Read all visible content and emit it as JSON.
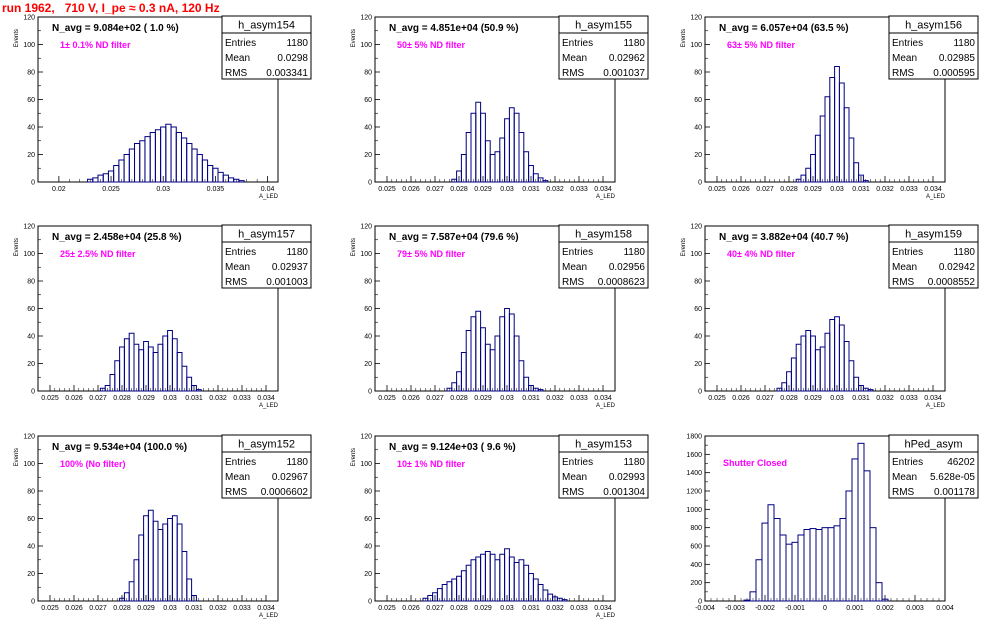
{
  "header": {
    "title": "run 1962,   710 V, I_pe ≈ 0.3 nA, 120 Hz"
  },
  "chart_data": [
    {
      "type": "histogram",
      "name": "h_asym154",
      "navg": "N_avg = 9.084e+02 ( 1.0 %)",
      "note": "1± 0.1% ND filter",
      "stats": {
        "entries": "1180",
        "mean": "0.0298",
        "rms": "0.003341"
      },
      "xlabel": "A_LED",
      "ylabel": "Events",
      "xlim": [
        0.018,
        0.041
      ],
      "ylim": [
        0,
        120
      ],
      "xticks": [
        0.02,
        0.025,
        0.03,
        0.035,
        0.04
      ],
      "xtick_labels": [
        "0.02",
        "0.025",
        "0.03",
        "0.035",
        "0.04"
      ],
      "yticks": [
        0,
        20,
        40,
        60,
        80,
        100,
        120
      ],
      "ytick_labels": [
        "0",
        "20",
        "40",
        "60",
        "80",
        "100",
        "120"
      ],
      "x": [
        0.023,
        0.0235,
        0.024,
        0.0245,
        0.025,
        0.0255,
        0.026,
        0.0265,
        0.027,
        0.0275,
        0.028,
        0.0285,
        0.029,
        0.0295,
        0.03,
        0.0305,
        0.031,
        0.0315,
        0.032,
        0.0325,
        0.033,
        0.0335,
        0.034,
        0.0345,
        0.035,
        0.0355,
        0.036,
        0.0365,
        0.037,
        0.0375
      ],
      "y": [
        2,
        3,
        5,
        6,
        8,
        12,
        16,
        20,
        24,
        28,
        30,
        33,
        36,
        38,
        40,
        42,
        40,
        36,
        32,
        28,
        24,
        20,
        16,
        12,
        10,
        7,
        5,
        3,
        2,
        1
      ]
    },
    {
      "type": "histogram",
      "name": "h_asym155",
      "navg": "N_avg = 4.851e+04 (50.9 %)",
      "note": "50± 5% ND filter",
      "stats": {
        "entries": "1180",
        "mean": "0.02962",
        "rms": "0.001037"
      },
      "xlabel": "A_LED",
      "ylabel": "Events",
      "xlim": [
        0.0245,
        0.0345
      ],
      "ylim": [
        0,
        120
      ],
      "xticks": [
        0.025,
        0.026,
        0.027,
        0.028,
        0.029,
        0.03,
        0.031,
        0.032,
        0.033,
        0.034
      ],
      "xtick_labels": [
        "0.025",
        "0.026",
        "0.027",
        "0.028",
        "0.029",
        "0.03",
        "0.031",
        "0.032",
        "0.033",
        "0.034"
      ],
      "yticks": [
        0,
        20,
        40,
        60,
        80,
        100,
        120
      ],
      "ytick_labels": [
        "0",
        "20",
        "40",
        "60",
        "80",
        "100",
        "120"
      ],
      "x": [
        0.0278,
        0.028,
        0.0282,
        0.0284,
        0.0286,
        0.0288,
        0.029,
        0.0292,
        0.0294,
        0.0296,
        0.0298,
        0.03,
        0.0302,
        0.0304,
        0.0306,
        0.0308,
        0.031,
        0.0312,
        0.0314,
        0.0316
      ],
      "y": [
        2,
        8,
        20,
        36,
        50,
        58,
        50,
        30,
        20,
        22,
        32,
        46,
        54,
        50,
        36,
        22,
        12,
        6,
        3,
        1
      ]
    },
    {
      "type": "histogram",
      "name": "h_asym156",
      "navg": "N_avg = 6.057e+04 (63.5 %)",
      "note": "63± 5% ND filter",
      "stats": {
        "entries": "1180",
        "mean": "0.02985",
        "rms": "0.000595"
      },
      "xlabel": "A_LED",
      "ylabel": "Events",
      "xlim": [
        0.0245,
        0.0345
      ],
      "ylim": [
        0,
        120
      ],
      "xticks": [
        0.025,
        0.026,
        0.027,
        0.028,
        0.029,
        0.03,
        0.031,
        0.032,
        0.033,
        0.034
      ],
      "xtick_labels": [
        "0.025",
        "0.026",
        "0.027",
        "0.028",
        "0.029",
        "0.03",
        "0.031",
        "0.032",
        "0.033",
        "0.034"
      ],
      "yticks": [
        0,
        20,
        40,
        60,
        80,
        100,
        120
      ],
      "ytick_labels": [
        "0",
        "20",
        "40",
        "60",
        "80",
        "100",
        "120"
      ],
      "x": [
        0.0284,
        0.0286,
        0.0288,
        0.029,
        0.0292,
        0.0294,
        0.0296,
        0.0298,
        0.03,
        0.0302,
        0.0304,
        0.0306,
        0.0308,
        0.031,
        0.0312
      ],
      "y": [
        2,
        5,
        10,
        20,
        34,
        48,
        62,
        76,
        84,
        72,
        54,
        32,
        14,
        5,
        1
      ]
    },
    {
      "type": "histogram",
      "name": "h_asym157",
      "navg": "N_avg = 2.458e+04 (25.8 %)",
      "note": "25± 2.5% ND filter",
      "stats": {
        "entries": "1180",
        "mean": "0.02937",
        "rms": "0.001003"
      },
      "xlabel": "A_LED",
      "ylabel": "Events",
      "xlim": [
        0.0245,
        0.0345
      ],
      "ylim": [
        0,
        120
      ],
      "xticks": [
        0.025,
        0.026,
        0.027,
        0.028,
        0.029,
        0.03,
        0.031,
        0.032,
        0.033,
        0.034
      ],
      "xtick_labels": [
        "0.025",
        "0.026",
        "0.027",
        "0.028",
        "0.029",
        "0.03",
        "0.031",
        "0.032",
        "0.033",
        "0.034"
      ],
      "yticks": [
        0,
        20,
        40,
        60,
        80,
        100,
        120
      ],
      "ytick_labels": [
        "0",
        "20",
        "40",
        "60",
        "80",
        "100",
        "120"
      ],
      "x": [
        0.0272,
        0.0274,
        0.0276,
        0.0278,
        0.028,
        0.0282,
        0.0284,
        0.0286,
        0.0288,
        0.029,
        0.0292,
        0.0294,
        0.0296,
        0.0298,
        0.03,
        0.0302,
        0.0304,
        0.0306,
        0.0308,
        0.031,
        0.0312
      ],
      "y": [
        2,
        4,
        12,
        22,
        32,
        38,
        42,
        34,
        30,
        36,
        32,
        28,
        34,
        40,
        44,
        38,
        28,
        18,
        10,
        4,
        1
      ]
    },
    {
      "type": "histogram",
      "name": "h_asym158",
      "navg": "N_avg = 7.587e+04 (79.6 %)",
      "note": "79± 5% ND filter",
      "stats": {
        "entries": "1180",
        "mean": "0.02956",
        "rms": "0.0008623"
      },
      "xlabel": "A_LED",
      "ylabel": "Events",
      "xlim": [
        0.0245,
        0.0345
      ],
      "ylim": [
        0,
        120
      ],
      "xticks": [
        0.025,
        0.026,
        0.027,
        0.028,
        0.029,
        0.03,
        0.031,
        0.032,
        0.033,
        0.034
      ],
      "xtick_labels": [
        "0.025",
        "0.026",
        "0.027",
        "0.028",
        "0.029",
        "0.03",
        "0.031",
        "0.032",
        "0.033",
        "0.034"
      ],
      "yticks": [
        0,
        20,
        40,
        60,
        80,
        100,
        120
      ],
      "ytick_labels": [
        "0",
        "20",
        "40",
        "60",
        "80",
        "100",
        "120"
      ],
      "x": [
        0.0276,
        0.0278,
        0.028,
        0.0282,
        0.0284,
        0.0286,
        0.0288,
        0.029,
        0.0292,
        0.0294,
        0.0296,
        0.0298,
        0.03,
        0.0302,
        0.0304,
        0.0306,
        0.0308,
        0.031,
        0.0312,
        0.0314
      ],
      "y": [
        2,
        6,
        14,
        28,
        44,
        54,
        58,
        46,
        34,
        30,
        40,
        54,
        60,
        56,
        40,
        22,
        10,
        4,
        2,
        1
      ]
    },
    {
      "type": "histogram",
      "name": "h_asym159",
      "navg": "N_avg = 3.882e+04 (40.7 %)",
      "note": "40± 4% ND filter",
      "stats": {
        "entries": "1180",
        "mean": "0.02942",
        "rms": "0.0008552"
      },
      "xlabel": "A_LED",
      "ylabel": "Events",
      "xlim": [
        0.0245,
        0.0345
      ],
      "ylim": [
        0,
        120
      ],
      "xticks": [
        0.025,
        0.026,
        0.027,
        0.028,
        0.029,
        0.03,
        0.031,
        0.032,
        0.033,
        0.034
      ],
      "xtick_labels": [
        "0.025",
        "0.026",
        "0.027",
        "0.028",
        "0.029",
        "0.03",
        "0.031",
        "0.032",
        "0.033",
        "0.034"
      ],
      "yticks": [
        0,
        20,
        40,
        60,
        80,
        100,
        120
      ],
      "ytick_labels": [
        "0",
        "20",
        "40",
        "60",
        "80",
        "100",
        "120"
      ],
      "x": [
        0.0276,
        0.0278,
        0.028,
        0.0282,
        0.0284,
        0.0286,
        0.0288,
        0.029,
        0.0292,
        0.0294,
        0.0296,
        0.0298,
        0.03,
        0.0302,
        0.0304,
        0.0306,
        0.0308,
        0.031,
        0.0312,
        0.0314
      ],
      "y": [
        2,
        6,
        14,
        24,
        34,
        40,
        44,
        40,
        30,
        32,
        42,
        52,
        54,
        48,
        36,
        22,
        10,
        4,
        2,
        1
      ]
    },
    {
      "type": "histogram",
      "name": "h_asym152",
      "navg": "N_avg = 9.534e+04 (100.0 %)",
      "note": "100% (No filter)",
      "stats": {
        "entries": "1180",
        "mean": "0.02967",
        "rms": "0.0006602"
      },
      "xlabel": "A_LED",
      "ylabel": "Events",
      "xlim": [
        0.0245,
        0.0345
      ],
      "ylim": [
        0,
        120
      ],
      "xticks": [
        0.025,
        0.026,
        0.027,
        0.028,
        0.029,
        0.03,
        0.031,
        0.032,
        0.033,
        0.034
      ],
      "xtick_labels": [
        "0.025",
        "0.026",
        "0.027",
        "0.028",
        "0.029",
        "0.03",
        "0.031",
        "0.032",
        "0.033",
        "0.034"
      ],
      "yticks": [
        0,
        20,
        40,
        60,
        80,
        100,
        120
      ],
      "ytick_labels": [
        "0",
        "20",
        "40",
        "60",
        "80",
        "100",
        "120"
      ],
      "x": [
        0.028,
        0.0282,
        0.0284,
        0.0286,
        0.0288,
        0.029,
        0.0292,
        0.0294,
        0.0296,
        0.0298,
        0.03,
        0.0302,
        0.0304,
        0.0306,
        0.0308,
        0.031
      ],
      "y": [
        2,
        6,
        14,
        30,
        48,
        62,
        66,
        58,
        52,
        56,
        60,
        62,
        56,
        36,
        16,
        4
      ]
    },
    {
      "type": "histogram",
      "name": "h_asym153",
      "navg": "N_avg = 9.124e+03 ( 9.6 %)",
      "note": "10± 1% ND filter",
      "stats": {
        "entries": "1180",
        "mean": "0.02993",
        "rms": "0.001304"
      },
      "xlabel": "A_LED",
      "ylabel": "Events",
      "xlim": [
        0.0245,
        0.0345
      ],
      "ylim": [
        0,
        120
      ],
      "xticks": [
        0.025,
        0.026,
        0.027,
        0.028,
        0.029,
        0.03,
        0.031,
        0.032,
        0.033,
        0.034
      ],
      "xtick_labels": [
        "0.025",
        "0.026",
        "0.027",
        "0.028",
        "0.029",
        "0.03",
        "0.031",
        "0.032",
        "0.033",
        "0.034"
      ],
      "yticks": [
        0,
        20,
        40,
        60,
        80,
        100,
        120
      ],
      "ytick_labels": [
        "0",
        "20",
        "40",
        "60",
        "80",
        "100",
        "120"
      ],
      "x": [
        0.0266,
        0.0268,
        0.027,
        0.0272,
        0.0274,
        0.0276,
        0.0278,
        0.028,
        0.0282,
        0.0284,
        0.0286,
        0.0288,
        0.029,
        0.0292,
        0.0294,
        0.0296,
        0.0298,
        0.03,
        0.0302,
        0.0304,
        0.0306,
        0.0308,
        0.031,
        0.0312,
        0.0314,
        0.0316,
        0.0318,
        0.032,
        0.0322,
        0.0324
      ],
      "y": [
        2,
        4,
        6,
        9,
        12,
        14,
        16,
        18,
        22,
        26,
        30,
        32,
        34,
        36,
        34,
        30,
        34,
        38,
        32,
        28,
        30,
        26,
        20,
        16,
        12,
        8,
        5,
        3,
        2,
        1
      ]
    },
    {
      "type": "histogram",
      "name": "hPed_asym",
      "navg": "",
      "note": "Shutter Closed",
      "stats": {
        "entries": "46202",
        "mean": "5.628e-05",
        "rms": "0.001178"
      },
      "xlabel": "",
      "ylabel": "",
      "xlim": [
        -0.004,
        0.004
      ],
      "ylim": [
        0,
        1800
      ],
      "xticks": [
        -0.004,
        -0.003,
        -0.002,
        -0.001,
        0,
        0.001,
        0.002,
        0.003,
        0.004
      ],
      "xtick_labels": [
        "-0.004",
        "-0.003",
        "-0.002",
        "-0.001",
        "0",
        "0.001",
        "0.002",
        "0.003",
        "0.004"
      ],
      "yticks": [
        0,
        200,
        400,
        600,
        800,
        1000,
        1200,
        1400,
        1600,
        1800
      ],
      "ytick_labels": [
        "0",
        "200",
        "400",
        "600",
        "800",
        "1000",
        "1200",
        "1400",
        "1600",
        "1800"
      ],
      "x": [
        -0.0026,
        -0.0024,
        -0.0022,
        -0.002,
        -0.0018,
        -0.0016,
        -0.0014,
        -0.0012,
        -0.001,
        -0.0008,
        -0.0006,
        -0.0004,
        -0.0002,
        0.0,
        0.0002,
        0.0004,
        0.0006,
        0.0008,
        0.001,
        0.0012,
        0.0014,
        0.0016,
        0.0018,
        0.002
      ],
      "y": [
        10,
        100,
        450,
        850,
        1050,
        900,
        720,
        620,
        640,
        720,
        780,
        790,
        780,
        800,
        800,
        820,
        900,
        1200,
        1550,
        1720,
        1420,
        800,
        200,
        20
      ]
    }
  ]
}
